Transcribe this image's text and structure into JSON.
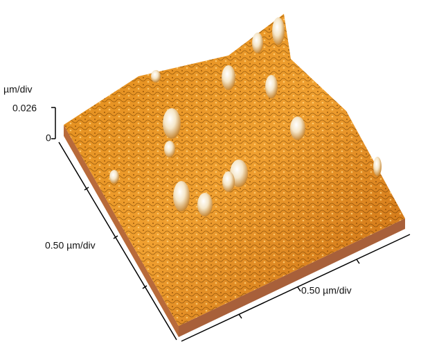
{
  "axes": {
    "z_unit": "µm/div",
    "z_top": "0.026",
    "z_bottom": "0",
    "left_scale": "0.50 µm/div",
    "right_scale": "0.50 µm/div"
  }
}
